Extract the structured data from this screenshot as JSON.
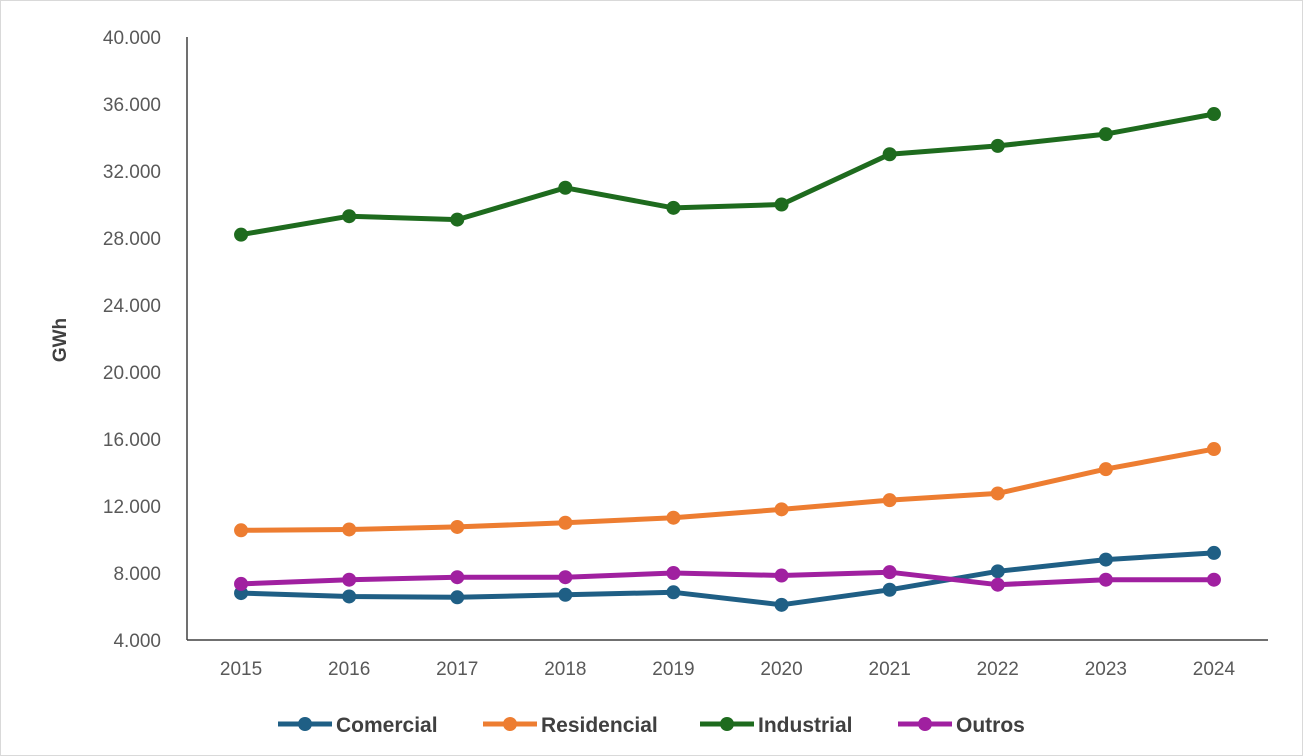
{
  "chart_data": {
    "type": "line",
    "title": "",
    "xlabel": "",
    "ylabel": "GWh",
    "x": [
      "2015",
      "2016",
      "2017",
      "2018",
      "2019",
      "2020",
      "2021",
      "2022",
      "2023",
      "2024"
    ],
    "ylim": [
      4000,
      40000
    ],
    "yticks": [
      4000,
      8000,
      12000,
      16000,
      20000,
      24000,
      28000,
      32000,
      36000,
      40000
    ],
    "ytick_labels": [
      "4.000",
      "8.000",
      "12.000",
      "16.000",
      "20.000",
      "24.000",
      "28.000",
      "32.000",
      "36.000",
      "40.000"
    ],
    "grid": false,
    "legend_position": "bottom",
    "series": [
      {
        "name": "Comercial",
        "color": "#1f5f85",
        "values": [
          6800,
          6600,
          6550,
          6700,
          6850,
          6100,
          7000,
          8100,
          8800,
          9200
        ]
      },
      {
        "name": "Residencial",
        "color": "#ed7d31",
        "values": [
          10550,
          10600,
          10750,
          11000,
          11300,
          11800,
          12350,
          12750,
          14200,
          15400
        ]
      },
      {
        "name": "Industrial",
        "color": "#1e6b1e",
        "values": [
          28200,
          29300,
          29100,
          31000,
          29800,
          30000,
          33000,
          33500,
          34200,
          35400
        ]
      },
      {
        "name": "Outros",
        "color": "#a020a0",
        "values": [
          7350,
          7600,
          7750,
          7750,
          8000,
          7850,
          8050,
          7300,
          7600,
          7600
        ]
      }
    ]
  }
}
